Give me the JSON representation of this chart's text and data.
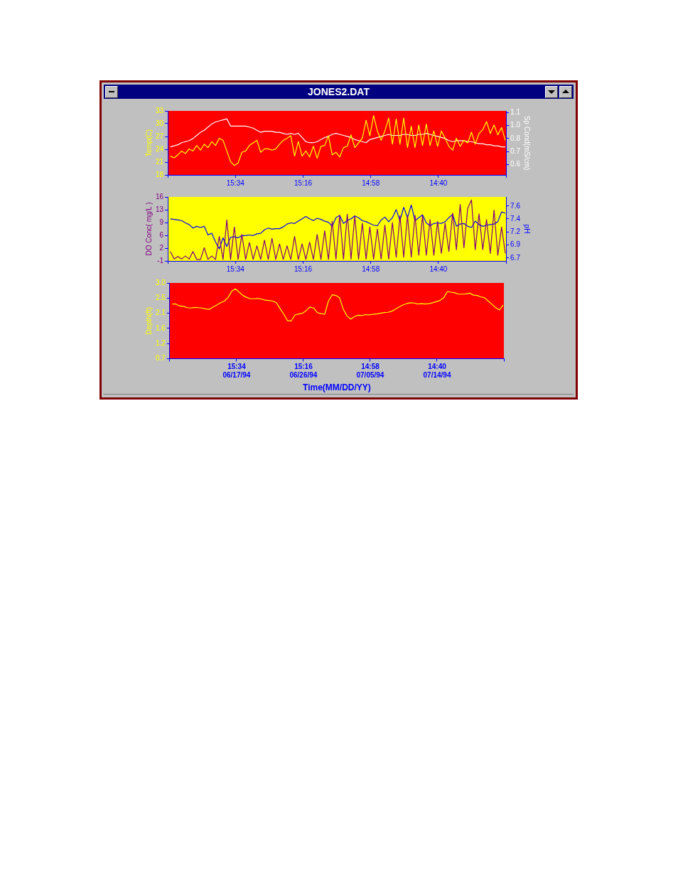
{
  "chart_data": [
    {
      "type": "line",
      "title": "JONES2.DAT",
      "ylabel": "Temp(C)",
      "y2label": "Sp Cond(mS/cm)",
      "x": [
        "--06-09T00:00",
        "--06-09T12:00",
        "--06-10T00:00",
        "--06-10T12:00",
        "--06-11T00:00",
        "--06-11T12:00",
        "--06-12T00:00",
        "--06-12T12:00",
        "--06-13T00:00",
        "--06-13T12:00",
        "--06-14T00:00",
        "--06-14T12:00",
        "--06-15T00:00",
        "--06-15T12:00",
        "--06-16T00:00",
        "--06-16T12:00",
        "--06-17T00:00",
        "--06-17T12:00",
        "--06-18T00:00",
        "--06-18T12:00",
        "--06-19T00:00",
        "--06-19T12:00",
        "--06-20T00:00",
        "--06-20T12:00",
        "--06-21T00:00",
        "--06-21T12:00",
        "--06-22T00:00",
        "--06-22T12:00",
        "--06-23T00:00",
        "--06-23T12:00",
        "--06-24T00:00",
        "--06-24T12:00",
        "--06-25T00:00",
        "--06-25T12:00",
        "--06-26T00:00",
        "--06-26T12:00",
        "--06-27T00:00",
        "--06-27T12:00",
        "--06-28T00:00",
        "--06-28T12:00",
        "--06-29T00:00",
        "--06-29T12:00",
        "--06-30T00:00",
        "--06-30T12:00",
        "--07-01T00:00",
        "--07-01T12:00",
        "--07-02T00:00",
        "--07-02T12:00",
        "--07-03T00:00",
        "--07-03T12:00",
        "--07-04T00:00",
        "--07-04T12:00",
        "--07-05T00:00",
        "--07-05T12:00",
        "--07-06T00:00",
        "--07-06T12:00",
        "--07-07T00:00",
        "--07-07T12:00",
        "--07-08T00:00",
        "--07-08T12:00",
        "--07-09T00:00",
        "--07-09T12:00",
        "--07-10T00:00",
        "--07-10T12:00",
        "--07-11T00:00",
        "--07-11T12:00",
        "--07-12T00:00",
        "--07-12T12:00",
        "--07-13T00:00",
        "--07-13T12:00",
        "--07-14T00:00",
        "--07-14T12:00",
        "--07-15T00:00",
        "--07-15T12:00",
        "--07-16T00:00",
        "--07-16T12:00",
        "--07-17T00:00",
        "--07-17T12:00",
        "--07-18T00:00",
        "--07-18T12:00",
        "--07-19T00:00",
        "--07-19T12:00",
        "--07-20T00:00",
        "--07-20T12:00",
        "--07-21T00:00",
        "--07-21T12:00",
        "--07-22T00:00",
        "--07-22T12:00",
        "--07-23T00:00",
        "--07-23T12:00"
      ],
      "xlim": [
        "--06-08T15:52",
        "--07-23T14:22"
      ],
      "xticks": [
        {
          "value": "--06-08T15:52",
          "label": null
        },
        {
          "value": "--06-17T15:34",
          "label": "15:34"
        },
        {
          "value": "--06-26T15:16",
          "label": "15:16"
        },
        {
          "value": "--07-05T14:58",
          "label": "14:58"
        },
        {
          "value": "--07-14T14:40",
          "label": "14:40"
        },
        {
          "value": "--07-23T14:22",
          "label": null
        }
      ],
      "ylim": [
        18,
        33
      ],
      "yticks": [
        18,
        21,
        24,
        27,
        30,
        33
      ],
      "y2lim": [
        0.5,
        1.116
      ],
      "y2ticks": [
        0.6,
        {
          "value": 0.725,
          "label": "0.7"
        },
        {
          "value": 0.85,
          "label": "0.8"
        },
        {
          "value": 0.975,
          "label": "1.0"
        },
        1.1
      ],
      "series": [
        {
          "color": "#ffff00",
          "values": [
            22.4,
            22.0,
            22.7,
            23.6,
            23.0,
            24.1,
            23.6,
            24.9,
            23.8,
            25.2,
            24.4,
            25.8,
            24.9,
            26.6,
            26.1,
            23.6,
            21.1,
            20.2,
            20.8,
            23.3,
            23.6,
            24.9,
            25.5,
            26.1,
            23.3,
            24.1,
            24.1,
            23.8,
            24.1,
            25.2,
            26.1,
            26.6,
            27.2,
            22.4,
            25.8,
            22.4,
            23.6,
            22.2,
            24.7,
            21.9,
            24.7,
            24.9,
            27.2,
            22.7,
            23.3,
            22.2,
            24.4,
            24.7,
            27.4,
            24.4,
            25.5,
            26.6,
            30.8,
            27.2,
            31.9,
            28.3,
            26.1,
            28.3,
            31.3,
            25.2,
            31.1,
            25.2,
            31.3,
            24.4,
            29.4,
            24.4,
            29.7,
            24.9,
            29.9,
            24.9,
            28.3,
            24.7,
            28.3,
            26.6,
            24.7,
            23.8,
            26.6,
            24.7,
            26.1,
            25.5,
            28.0,
            25.2,
            27.7,
            28.6,
            30.5,
            27.7,
            29.7,
            27.4,
            29.1,
            26.1
          ]
        },
        {
          "color": "#ffffff",
          "axis": "y2",
          "values": [
            0.77,
            0.78,
            0.79,
            0.81,
            0.82,
            0.83,
            0.85,
            0.88,
            0.91,
            0.93,
            0.96,
            0.99,
            1.01,
            1.02,
            1.03,
            1.04,
            0.97,
            0.97,
            0.97,
            0.97,
            0.97,
            0.96,
            0.95,
            0.93,
            0.91,
            0.92,
            0.92,
            0.92,
            0.91,
            0.91,
            0.9,
            0.89,
            0.9,
            0.89,
            0.9,
            0.86,
            0.82,
            0.81,
            0.81,
            0.82,
            0.84,
            0.86,
            0.87,
            0.89,
            0.9,
            0.89,
            0.88,
            0.87,
            0.86,
            0.84,
            0.83,
            0.82,
            0.81,
            0.84,
            0.85,
            0.86,
            0.87,
            0.88,
            0.89,
            0.88,
            0.88,
            0.88,
            0.89,
            0.89,
            0.88,
            0.88,
            0.89,
            0.89,
            0.9,
            0.89,
            0.88,
            0.87,
            0.86,
            0.85,
            0.83,
            0.82,
            0.83,
            0.83,
            0.83,
            0.82,
            0.82,
            0.81,
            0.8,
            0.8,
            0.79,
            0.79,
            0.78,
            0.78,
            0.77,
            0.77
          ]
        }
      ]
    },
    {
      "type": "line",
      "ylabel": "DO Conc( mg/L )",
      "y2label": "pH",
      "x": [
        "--06-09T00:00",
        "--06-09T12:00",
        "--06-10T00:00",
        "--06-10T12:00",
        "--06-11T00:00",
        "--06-11T12:00",
        "--06-12T00:00",
        "--06-12T12:00",
        "--06-13T00:00",
        "--06-13T12:00",
        "--06-14T00:00",
        "--06-14T12:00",
        "--06-15T00:00",
        "--06-15T12:00",
        "--06-16T00:00",
        "--06-16T12:00",
        "--06-17T00:00",
        "--06-17T12:00",
        "--06-18T00:00",
        "--06-18T12:00",
        "--06-19T00:00",
        "--06-19T12:00",
        "--06-20T00:00",
        "--06-20T12:00",
        "--06-21T00:00",
        "--06-21T12:00",
        "--06-22T00:00",
        "--06-22T12:00",
        "--06-23T00:00",
        "--06-23T12:00",
        "--06-24T00:00",
        "--06-24T12:00",
        "--06-25T00:00",
        "--06-25T12:00",
        "--06-26T00:00",
        "--06-26T12:00",
        "--06-27T00:00",
        "--06-27T12:00",
        "--06-28T00:00",
        "--06-28T12:00",
        "--06-29T00:00",
        "--06-29T12:00",
        "--06-30T00:00",
        "--06-30T12:00",
        "--07-01T00:00",
        "--07-01T12:00",
        "--07-02T00:00",
        "--07-02T12:00",
        "--07-03T00:00",
        "--07-03T12:00",
        "--07-04T00:00",
        "--07-04T12:00",
        "--07-05T00:00",
        "--07-05T12:00",
        "--07-06T00:00",
        "--07-06T12:00",
        "--07-07T00:00",
        "--07-07T12:00",
        "--07-08T00:00",
        "--07-08T12:00",
        "--07-09T00:00",
        "--07-09T12:00",
        "--07-10T00:00",
        "--07-10T12:00",
        "--07-11T00:00",
        "--07-11T12:00",
        "--07-12T00:00",
        "--07-12T12:00",
        "--07-13T00:00",
        "--07-13T12:00",
        "--07-14T00:00",
        "--07-14T12:00",
        "--07-15T00:00",
        "--07-15T12:00",
        "--07-16T00:00",
        "--07-16T12:00",
        "--07-17T00:00",
        "--07-17T12:00",
        "--07-18T00:00",
        "--07-18T12:00",
        "--07-19T00:00",
        "--07-19T12:00",
        "--07-20T00:00",
        "--07-20T12:00",
        "--07-21T00:00",
        "--07-21T12:00",
        "--07-22T00:00",
        "--07-22T12:00",
        "--07-23T00:00",
        "--07-23T12:00"
      ],
      "xlim": [
        "--06-08T15:52",
        "--07-23T14:22"
      ],
      "xticks": [
        {
          "value": "--06-08T15:52",
          "label": null
        },
        {
          "value": "--06-17T15:34",
          "label": "15:34"
        },
        {
          "value": "--06-26T15:16",
          "label": "15:16"
        },
        {
          "value": "--07-05T14:58",
          "label": "14:58"
        },
        {
          "value": "--07-14T14:40",
          "label": "14:40"
        },
        {
          "value": "--07-23T14:22",
          "label": null
        }
      ],
      "ylim": [
        -1,
        16
      ],
      "yticks": [
        -1,
        {
          "value": 2.4,
          "label": "2"
        },
        {
          "value": 5.8,
          "label": "6"
        },
        {
          "value": 9.2,
          "label": "9"
        },
        {
          "value": 12.6,
          "label": "13"
        },
        16
      ],
      "y2lim": [
        6.65,
        7.76
      ],
      "y2ticks": [
        6.7,
        {
          "value": 6.93,
          "label": "6.9"
        },
        {
          "value": 7.15,
          "label": "7.2"
        },
        {
          "value": 7.38,
          "label": "7.4"
        },
        7.6
      ],
      "series": [
        {
          "color": "#800080",
          "values": [
            1.5,
            -0.5,
            0.2,
            -0.5,
            0.3,
            -0.5,
            1.5,
            -0.6,
            -0.6,
            2.5,
            -0.6,
            0.3,
            -0.6,
            5.5,
            -0.6,
            9.9,
            -0.6,
            8.0,
            -0.6,
            6.0,
            -0.6,
            3.9,
            -0.6,
            3.0,
            -0.6,
            4.5,
            -0.6,
            5.0,
            -0.6,
            3.5,
            -0.6,
            3.0,
            -0.6,
            5.5,
            -0.6,
            3.5,
            -0.6,
            4.0,
            -0.6,
            6.0,
            -0.6,
            7.0,
            -0.6,
            9.5,
            -0.5,
            11.1,
            -0.5,
            11.4,
            -0.5,
            11.0,
            -0.5,
            9.0,
            -0.5,
            8.0,
            -0.5,
            7.5,
            -0.5,
            8.5,
            -0.5,
            9.2,
            0.0,
            11.0,
            0.0,
            11.0,
            0.0,
            11.1,
            0.5,
            11.0,
            0.5,
            10.0,
            0.5,
            9.5,
            1.0,
            9.0,
            1.5,
            11.7,
            2.0,
            14.0,
            2.5,
            13.0,
            15.2,
            2.0,
            11.5,
            2.0,
            10.0,
            1.0,
            12.5,
            0.5,
            8.0,
            1.0
          ]
        },
        {
          "color": "#0000ff",
          "axis": "y2",
          "values": [
            7.38,
            7.37,
            7.36,
            7.35,
            7.31,
            7.28,
            7.22,
            7.25,
            7.23,
            7.25,
            7.1,
            7.13,
            6.98,
            6.86,
            7.05,
            6.9,
            7.06,
            7.07,
            7.05,
            7.09,
            7.09,
            7.1,
            7.09,
            7.12,
            7.13,
            7.19,
            7.22,
            7.2,
            7.21,
            7.21,
            7.24,
            7.29,
            7.31,
            7.3,
            7.34,
            7.38,
            7.42,
            7.38,
            7.35,
            7.39,
            7.37,
            7.34,
            7.32,
            7.25,
            7.4,
            7.44,
            7.3,
            7.35,
            7.38,
            7.43,
            7.4,
            7.35,
            7.33,
            7.3,
            7.27,
            7.26,
            7.36,
            7.41,
            7.33,
            7.4,
            7.54,
            7.35,
            7.58,
            7.4,
            7.62,
            7.35,
            7.4,
            7.45,
            7.31,
            7.26,
            7.3,
            7.31,
            7.3,
            7.33,
            7.4,
            7.46,
            7.25,
            7.29,
            7.3,
            7.25,
            7.23,
            7.34,
            7.28,
            7.25,
            7.27,
            7.28,
            7.29,
            7.33,
            7.5,
            7.48
          ]
        }
      ]
    },
    {
      "type": "line",
      "ylabel": "Depth(ft)",
      "xlabel": "Time(MM/DD/YY)",
      "x": [
        "1994-06-09T00:00",
        "1994-06-09T12:00",
        "1994-06-10T00:00",
        "1994-06-10T12:00",
        "1994-06-11T00:00",
        "1994-06-11T12:00",
        "1994-06-12T00:00",
        "1994-06-12T12:00",
        "1994-06-13T00:00",
        "1994-06-13T12:00",
        "1994-06-14T00:00",
        "1994-06-14T12:00",
        "1994-06-15T00:00",
        "1994-06-15T12:00",
        "1994-06-16T00:00",
        "1994-06-16T12:00",
        "1994-06-17T00:00",
        "1994-06-17T12:00",
        "1994-06-18T00:00",
        "1994-06-18T12:00",
        "1994-06-19T00:00",
        "1994-06-19T12:00",
        "1994-06-20T00:00",
        "1994-06-20T12:00",
        "1994-06-21T00:00",
        "1994-06-21T12:00",
        "1994-06-22T00:00",
        "1994-06-22T12:00",
        "1994-06-23T00:00",
        "1994-06-23T12:00",
        "1994-06-24T00:00",
        "1994-06-24T12:00",
        "1994-06-25T00:00",
        "1994-06-25T12:00",
        "1994-06-26T00:00",
        "1994-06-26T12:00",
        "1994-06-27T00:00",
        "1994-06-27T12:00",
        "1994-06-28T00:00",
        "1994-06-28T12:00",
        "1994-06-29T00:00",
        "1994-06-29T12:00",
        "1994-06-30T00:00",
        "1994-06-30T12:00",
        "1994-07-01T00:00",
        "1994-07-01T12:00",
        "1994-07-02T00:00",
        "1994-07-02T12:00",
        "1994-07-03T00:00",
        "1994-07-03T12:00",
        "1994-07-04T00:00",
        "1994-07-04T12:00",
        "1994-07-05T00:00",
        "1994-07-05T12:00",
        "1994-07-06T00:00",
        "1994-07-06T12:00",
        "1994-07-07T00:00",
        "1994-07-07T12:00",
        "1994-07-08T00:00",
        "1994-07-08T12:00",
        "1994-07-09T00:00",
        "1994-07-09T12:00",
        "1994-07-10T00:00",
        "1994-07-10T12:00",
        "1994-07-11T00:00",
        "1994-07-11T12:00",
        "1994-07-12T00:00",
        "1994-07-12T12:00",
        "1994-07-13T00:00",
        "1994-07-13T12:00",
        "1994-07-14T00:00",
        "1994-07-14T12:00",
        "1994-07-15T00:00",
        "1994-07-15T12:00",
        "1994-07-16T00:00",
        "1994-07-16T12:00",
        "1994-07-17T00:00",
        "1994-07-17T12:00",
        "1994-07-18T00:00",
        "1994-07-18T12:00",
        "1994-07-19T00:00",
        "1994-07-19T12:00",
        "1994-07-20T00:00",
        "1994-07-20T12:00",
        "1994-07-21T00:00",
        "1994-07-21T12:00",
        "1994-07-22T00:00",
        "1994-07-22T12:00",
        "1994-07-23T00:00",
        "1994-07-23T12:00"
      ],
      "xlim": [
        "1994-06-08T15:52",
        "1994-07-23T14:22"
      ],
      "xticks": [
        {
          "value": "1994-06-08T15:52",
          "label": null
        },
        {
          "value": "1994-06-17T15:34",
          "label": "15:34\n06/17/94"
        },
        {
          "value": "1994-06-26T15:16",
          "label": "15:16\n06/26/94"
        },
        {
          "value": "1994-07-05T14:58",
          "label": "14:58\n07/05/94"
        },
        {
          "value": "1994-07-14T14:40",
          "label": "14:40\n07/14/94"
        },
        {
          "value": "1994-07-23T14:22",
          "label": null
        }
      ],
      "ylim": [
        0.7,
        3.0
      ],
      "yticks": [
        0.7,
        {
          "value": 1.16,
          "label": "1.2"
        },
        {
          "value": 1.62,
          "label": "1.6"
        },
        {
          "value": 2.08,
          "label": "2.1"
        },
        {
          "value": 2.54,
          "label": "2.5"
        },
        {
          "value": 3.0,
          "label": "3.0"
        }
      ],
      "series": [
        {
          "color": "#ffff00",
          "values": [
            2.36,
            2.36,
            2.3,
            2.29,
            2.25,
            2.24,
            2.26,
            2.25,
            2.24,
            2.21,
            2.2,
            2.27,
            2.33,
            2.4,
            2.45,
            2.56,
            2.75,
            2.82,
            2.72,
            2.62,
            2.56,
            2.52,
            2.52,
            2.53,
            2.51,
            2.48,
            2.47,
            2.45,
            2.4,
            2.22,
            2.05,
            1.85,
            1.85,
            2.03,
            2.06,
            2.08,
            2.16,
            2.27,
            2.24,
            2.1,
            2.07,
            2.05,
            2.45,
            2.64,
            2.62,
            2.55,
            2.2,
            2.0,
            1.9,
            1.98,
            2.02,
            2.01,
            2.04,
            2.03,
            2.05,
            2.06,
            2.08,
            2.1,
            2.11,
            2.14,
            2.2,
            2.27,
            2.33,
            2.37,
            2.4,
            2.39,
            2.36,
            2.37,
            2.36,
            2.37,
            2.4,
            2.43,
            2.47,
            2.55,
            2.74,
            2.72,
            2.7,
            2.66,
            2.66,
            2.67,
            2.69,
            2.63,
            2.62,
            2.58,
            2.55,
            2.45,
            2.35,
            2.25,
            2.18,
            2.33
          ]
        }
      ]
    }
  ]
}
